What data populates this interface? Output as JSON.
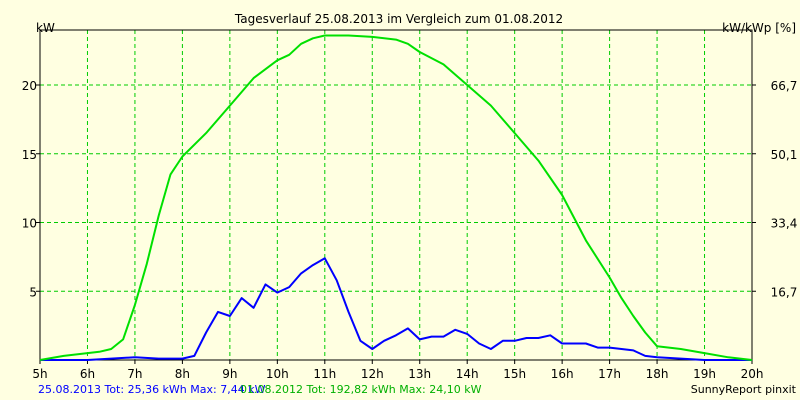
{
  "chart_data": {
    "type": "line",
    "title": "Tagesverlauf 25.08.2013 im Vergleich zum 01.08.2012",
    "ylabel_left": "kW",
    "ylabel_right": "kW/kWp [%]",
    "x_ticks": [
      "5h",
      "6h",
      "7h",
      "8h",
      "9h",
      "10h",
      "11h",
      "12h",
      "13h",
      "14h",
      "15h",
      "16h",
      "17h",
      "18h",
      "19h",
      "20h"
    ],
    "xlim": [
      5,
      20
    ],
    "ylim": [
      0,
      24
    ],
    "y_ticks_left": [
      "5",
      "10",
      "15",
      "20"
    ],
    "y_ticks_left_values": [
      5,
      10,
      15,
      20
    ],
    "y_ticks_right": [
      "16,7",
      "33,4",
      "50,1",
      "66,7"
    ],
    "grid": true,
    "series": [
      {
        "name": "25.08.2013",
        "color": "#0000ff",
        "x": [
          5.0,
          6.0,
          6.5,
          7.0,
          7.5,
          8.0,
          8.25,
          8.5,
          8.75,
          9.0,
          9.25,
          9.5,
          9.75,
          10.0,
          10.25,
          10.5,
          10.75,
          10.9,
          11.0,
          11.25,
          11.5,
          11.75,
          12.0,
          12.25,
          12.5,
          12.75,
          13.0,
          13.25,
          13.5,
          13.75,
          14.0,
          14.25,
          14.5,
          14.75,
          15.0,
          15.25,
          15.5,
          15.75,
          16.0,
          16.25,
          16.5,
          16.75,
          17.0,
          17.25,
          17.5,
          17.75,
          18.0,
          18.5,
          19.0,
          20.0
        ],
        "values": [
          0,
          0,
          0.1,
          0.2,
          0.1,
          0.1,
          0.3,
          2.0,
          3.5,
          3.2,
          4.5,
          3.8,
          5.5,
          4.9,
          5.3,
          6.3,
          6.9,
          7.2,
          7.4,
          5.8,
          3.5,
          1.4,
          0.8,
          1.4,
          1.8,
          2.3,
          1.5,
          1.7,
          1.7,
          2.2,
          1.9,
          1.2,
          0.8,
          1.4,
          1.4,
          1.6,
          1.6,
          1.8,
          1.2,
          1.2,
          1.2,
          0.9,
          0.9,
          0.8,
          0.7,
          0.3,
          0.2,
          0.1,
          0,
          0
        ]
      },
      {
        "name": "01.08.2012",
        "color": "#00e000",
        "x": [
          5.0,
          5.5,
          6.0,
          6.25,
          6.5,
          6.75,
          7.0,
          7.25,
          7.5,
          7.75,
          8.0,
          8.5,
          9.0,
          9.5,
          10.0,
          10.25,
          10.5,
          10.75,
          11.0,
          11.5,
          12.0,
          12.5,
          12.75,
          13.0,
          13.5,
          14.0,
          14.5,
          15.0,
          15.5,
          16.0,
          16.5,
          17.0,
          17.25,
          17.5,
          17.75,
          18.0,
          18.5,
          19.0,
          19.5,
          20.0
        ],
        "values": [
          0,
          0.3,
          0.5,
          0.6,
          0.8,
          1.5,
          4.0,
          7.0,
          10.5,
          13.5,
          14.8,
          16.5,
          18.5,
          20.5,
          21.8,
          22.2,
          23.0,
          23.4,
          23.6,
          23.6,
          23.5,
          23.3,
          23.0,
          22.4,
          21.5,
          20.0,
          18.5,
          16.5,
          14.5,
          12.0,
          8.7,
          6.0,
          4.5,
          3.2,
          2.0,
          1.0,
          0.8,
          0.5,
          0.2,
          0
        ]
      }
    ],
    "footer": {
      "blue_text": "25.08.2013 Tot: 25,36 kWh Max: 7,44 kW",
      "green_text": "01.08.2012 Tot: 192,82 kWh Max: 24,10 kW",
      "credit": "SunnyReport pinxit"
    }
  }
}
